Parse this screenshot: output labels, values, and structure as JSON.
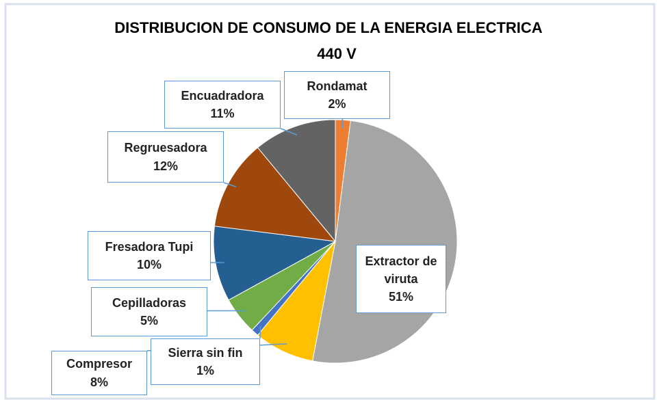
{
  "chart_data": {
    "type": "pie",
    "title": [
      "DISTRIBUCION DE CONSUMO DE LA ENERGIA ELECTRICA",
      "440 V"
    ],
    "categories": [
      "Rondamat",
      "Extractor de viruta",
      "Compresor",
      "Sierra sin fin",
      "Cepilladoras",
      "Fresadora Tupi",
      "Regruesadora",
      "Encuadradora"
    ],
    "values": [
      2,
      51,
      8,
      1,
      5,
      10,
      12,
      11
    ],
    "value_labels": [
      "2%",
      "51%",
      "8%",
      "1%",
      "5%",
      "10%",
      "12%",
      "11%"
    ],
    "colors": [
      "#ED7D31",
      "#A5A5A5",
      "#FFC000",
      "#4472C4",
      "#70AD47",
      "#255E91",
      "#9E480E",
      "#636363"
    ]
  }
}
